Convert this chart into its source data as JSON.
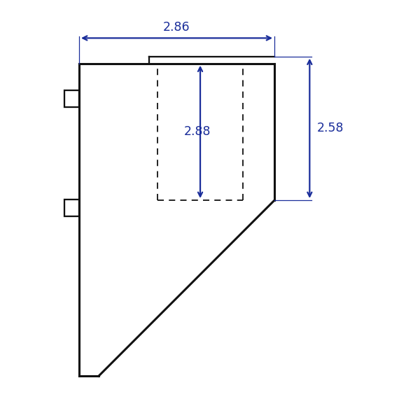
{
  "background_color": "#ffffff",
  "line_color": "#111111",
  "dim_color": "#1a2d9a",
  "dim_286_label": "2.86",
  "dim_288_label": "2.88",
  "dim_258_label": "2.58",
  "xlim": [
    -0.8,
    7.5
  ],
  "ylim": [
    -1.0,
    9.5
  ],
  "figsize": [
    6.0,
    6.0
  ],
  "dpi": 100
}
